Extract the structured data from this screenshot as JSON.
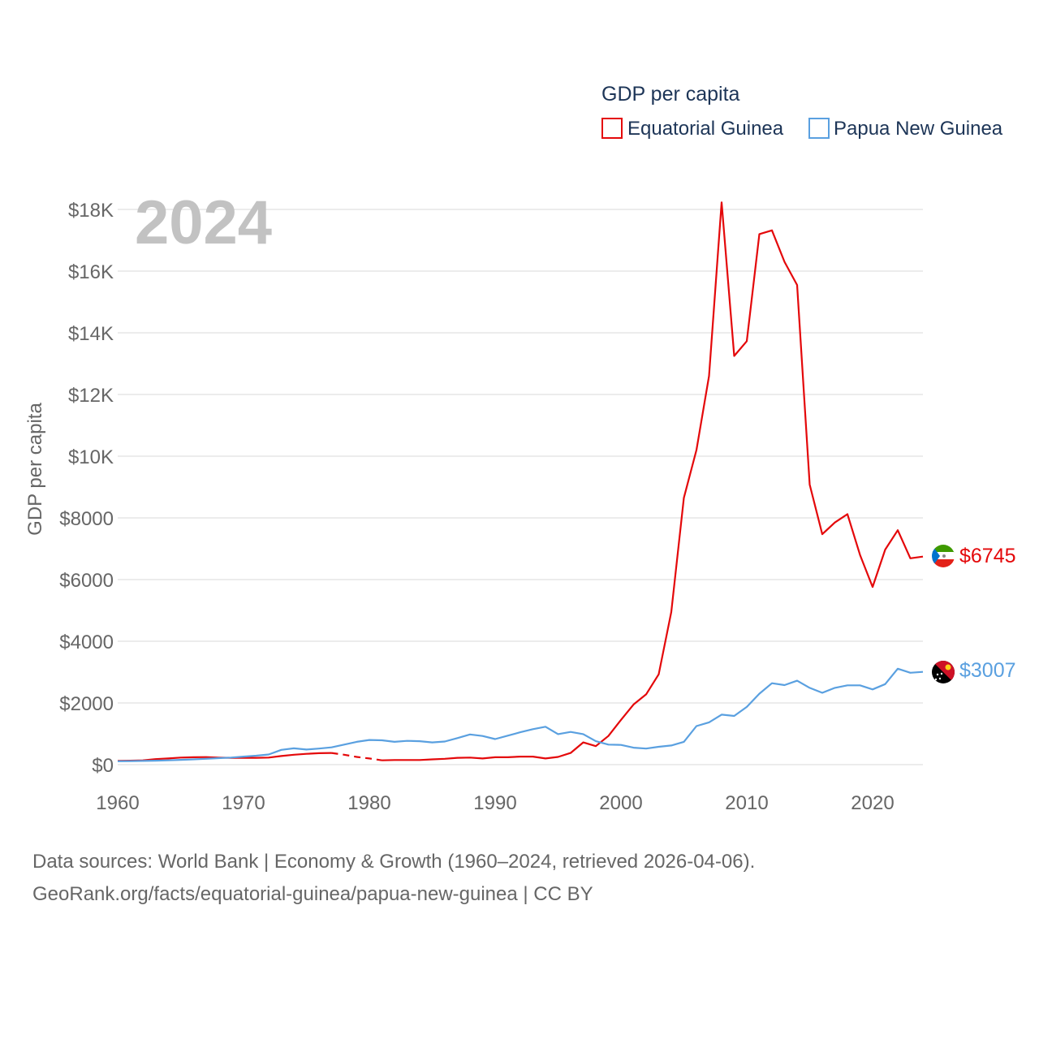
{
  "chart_data": {
    "type": "line",
    "legend_title": "GDP per capita",
    "ylabel": "GDP per capita",
    "year_label": "2024",
    "xlim": [
      1960,
      2024
    ],
    "ylim": [
      0,
      18000
    ],
    "x_ticks": [
      1960,
      1970,
      1980,
      1990,
      2000,
      2010,
      2020
    ],
    "x_tick_labels": [
      "1960",
      "1970",
      "1980",
      "1990",
      "2000",
      "2010",
      "2020"
    ],
    "y_ticks": [
      0,
      2000,
      4000,
      6000,
      8000,
      10000,
      12000,
      14000,
      16000,
      18000
    ],
    "y_tick_labels": [
      "$0",
      "$2000",
      "$4000",
      "$6000",
      "$8000",
      "$10K",
      "$12K",
      "$14K",
      "$16K",
      "$18K"
    ],
    "series": [
      {
        "name": "Equatorial Guinea",
        "color": "#e4080a",
        "end_label": "$6745",
        "flag_icon": "equatorial-guinea-flag-icon",
        "gap_years": [
          1978,
          1979,
          1980
        ],
        "x": [
          1960,
          1961,
          1962,
          1963,
          1964,
          1965,
          1966,
          1967,
          1968,
          1969,
          1970,
          1971,
          1972,
          1973,
          1974,
          1975,
          1976,
          1977,
          1978,
          1979,
          1980,
          1981,
          1982,
          1983,
          1984,
          1985,
          1986,
          1987,
          1988,
          1989,
          1990,
          1991,
          1992,
          1993,
          1994,
          1995,
          1996,
          1997,
          1998,
          1999,
          2000,
          2001,
          2002,
          2003,
          2004,
          2005,
          2006,
          2007,
          2008,
          2009,
          2010,
          2011,
          2012,
          2013,
          2014,
          2015,
          2016,
          2017,
          2018,
          2019,
          2020,
          2021,
          2022,
          2023,
          2024
        ],
        "values": [
          120,
          130,
          140,
          180,
          200,
          230,
          240,
          245,
          230,
          220,
          220,
          220,
          230,
          280,
          320,
          350,
          370,
          380,
          320,
          250,
          200,
          140,
          150,
          150,
          150,
          170,
          190,
          220,
          230,
          200,
          240,
          240,
          260,
          260,
          200,
          250,
          380,
          720,
          600,
          930,
          1450,
          1950,
          2280,
          2930,
          4950,
          8650,
          10200,
          12600,
          18230,
          13250,
          13730,
          17200,
          17320,
          16300,
          15550,
          9080,
          7470,
          7850,
          8120,
          6800,
          5760,
          6970,
          7600,
          6690,
          6745
        ]
      },
      {
        "name": "Papua New Guinea",
        "color": "#5aa0e0",
        "end_label": "$3007",
        "flag_icon": "papua-new-guinea-flag-icon",
        "gap_years": [],
        "x": [
          1960,
          1961,
          1962,
          1963,
          1964,
          1965,
          1966,
          1967,
          1968,
          1969,
          1970,
          1971,
          1972,
          1973,
          1974,
          1975,
          1976,
          1977,
          1978,
          1979,
          1980,
          1981,
          1982,
          1983,
          1984,
          1985,
          1986,
          1987,
          1988,
          1989,
          1990,
          1991,
          1992,
          1993,
          1994,
          1995,
          1996,
          1997,
          1998,
          1999,
          2000,
          2001,
          2002,
          2003,
          2004,
          2005,
          2006,
          2007,
          2008,
          2009,
          2010,
          2011,
          2012,
          2013,
          2014,
          2015,
          2016,
          2017,
          2018,
          2019,
          2020,
          2021,
          2022,
          2023,
          2024
        ],
        "values": [
          110,
          115,
          120,
          130,
          140,
          155,
          170,
          190,
          210,
          230,
          260,
          290,
          330,
          480,
          530,
          490,
          520,
          560,
          650,
          740,
          800,
          790,
          740,
          770,
          760,
          720,
          750,
          860,
          980,
          930,
          830,
          940,
          1050,
          1150,
          1230,
          990,
          1060,
          990,
          760,
          650,
          640,
          550,
          520,
          580,
          620,
          740,
          1250,
          1370,
          1620,
          1580,
          1870,
          2300,
          2640,
          2580,
          2720,
          2490,
          2330,
          2490,
          2570,
          2570,
          2440,
          2610,
          3110,
          2980,
          3007
        ]
      }
    ]
  },
  "footer": {
    "source_line1": "Data sources: World Bank | Economy & Growth (1960–2024, retrieved 2026-04-06).",
    "source_line2": "GeoRank.org/facts/equatorial-guinea/papua-new-guinea | CC BY"
  }
}
